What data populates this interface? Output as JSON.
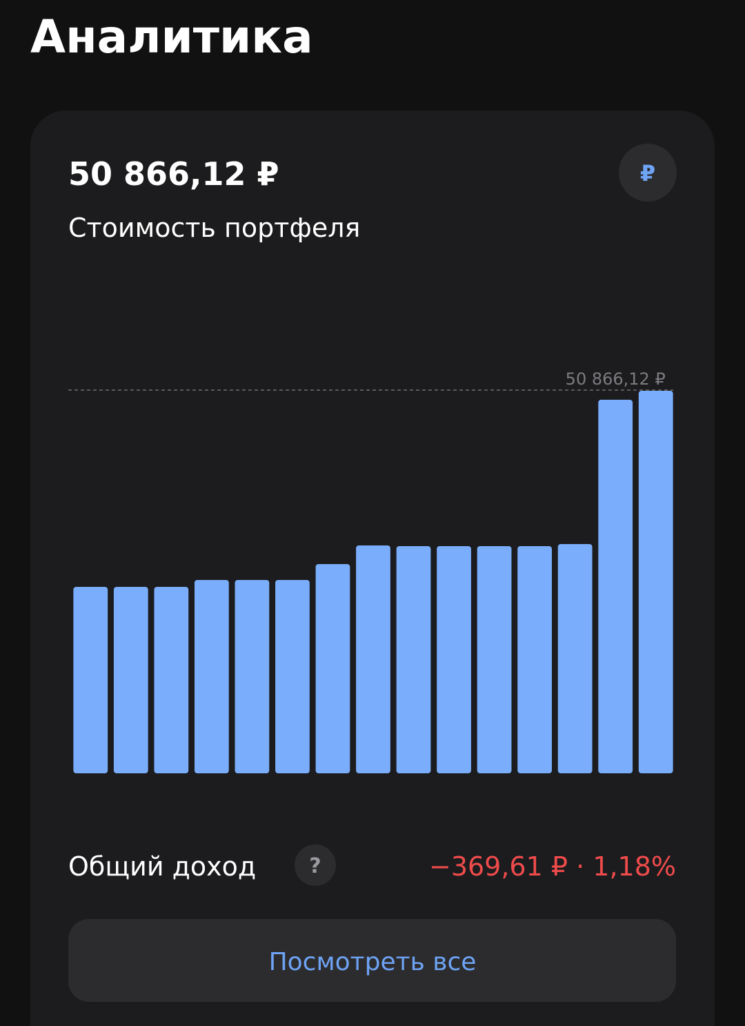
{
  "header": {
    "title": "Аналитика"
  },
  "card": {
    "amount": "50 866,12 ₽",
    "currency_button": "₽",
    "subtitle": "Стоимость портфеля",
    "income_label": "Общий доход",
    "help": "?",
    "income_value": "−369,61 ₽ · 1,18%",
    "button": "Посмотреть все"
  },
  "chart_data": {
    "type": "bar",
    "values": [
      24790,
      24790,
      24790,
      25708,
      25708,
      25708,
      27820,
      30299,
      30207,
      30207,
      30207,
      30207,
      30483,
      49672,
      50866.12
    ],
    "value_labels": [
      null,
      null,
      null,
      null,
      null,
      null,
      null,
      null,
      null,
      null,
      null,
      null,
      null,
      null,
      "50 866,12 ₽"
    ],
    "color": "#7aaefc",
    "ylim": [
      0,
      50866.12
    ]
  }
}
